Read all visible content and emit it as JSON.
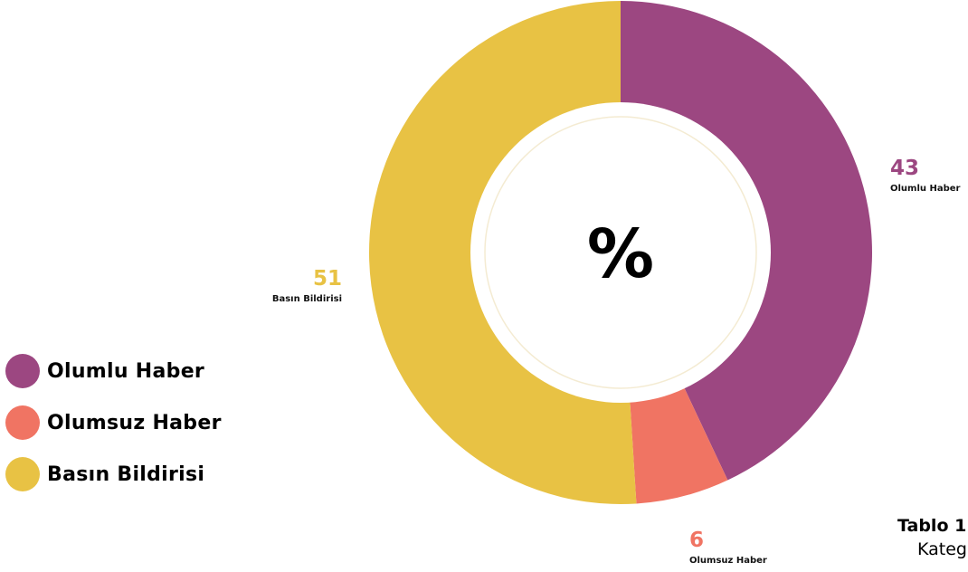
{
  "chart_data": {
    "type": "pie",
    "style": "donut",
    "center_label": "%",
    "slices": [
      {
        "label": "Olumlu Haber",
        "value": 43,
        "color": "#9C4781"
      },
      {
        "label": "Olumsuz Haber",
        "value": 6,
        "color": "#F07463"
      },
      {
        "label": "Basın Bildirisi",
        "value": 51,
        "color": "#E8C244"
      }
    ],
    "legend": {
      "placement": "bottom-left",
      "entries": [
        "Olumlu Haber",
        "Olumsuz Haber",
        "Basın Bildirisi"
      ]
    }
  },
  "caption": {
    "title": "Tablo 1",
    "subtitle": "Kateg"
  }
}
